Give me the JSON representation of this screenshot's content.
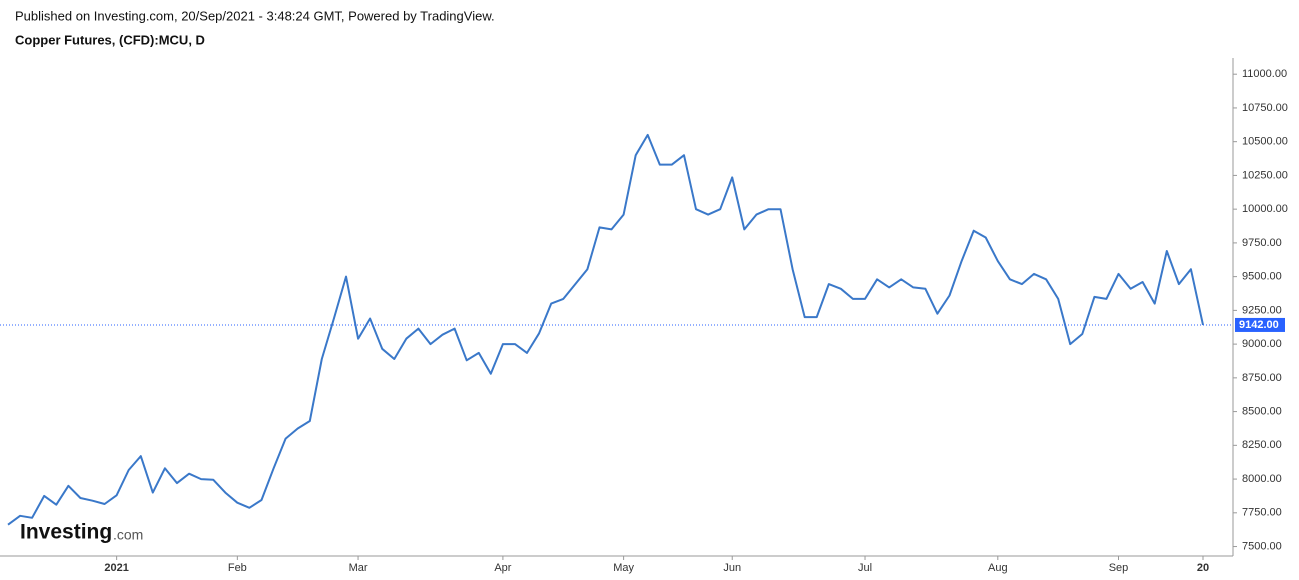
{
  "chart_data": {
    "type": "line",
    "header": "Published on Investing.com, 20/Sep/2021 - 3:48:24 GMT, Powered by TradingView.",
    "title": "Copper Futures, (CFD):MCU, D",
    "logo": "Investing",
    "logo_suffix": ".com",
    "color": "#3a78c9",
    "categories": [
      null,
      null,
      null,
      null,
      null,
      null,
      null,
      null,
      null,
      "2021",
      null,
      null,
      null,
      null,
      null,
      null,
      null,
      null,
      null,
      "Feb",
      null,
      null,
      null,
      null,
      null,
      null,
      null,
      null,
      null,
      "Mar",
      null,
      null,
      null,
      null,
      null,
      null,
      null,
      null,
      null,
      null,
      null,
      "Apr",
      null,
      null,
      null,
      null,
      null,
      null,
      null,
      null,
      null,
      "May",
      null,
      null,
      null,
      null,
      null,
      null,
      null,
      null,
      "Jun",
      null,
      null,
      null,
      null,
      null,
      null,
      null,
      null,
      null,
      null,
      "Jul",
      null,
      null,
      null,
      null,
      null,
      null,
      null,
      null,
      null,
      null,
      "Aug",
      null,
      null,
      null,
      null,
      null,
      null,
      null,
      null,
      null,
      "Sep",
      null,
      null,
      null,
      null,
      null,
      null,
      "20"
    ],
    "values": [
      7662,
      7728,
      7713,
      7875,
      7810,
      7950,
      7860,
      7840,
      7815,
      7880,
      8067,
      8170,
      7900,
      8080,
      7970,
      8040,
      8000,
      7995,
      7900,
      7825,
      7787,
      7845,
      8080,
      8300,
      8375,
      8430,
      8890,
      9190,
      9500,
      9040,
      9190,
      8965,
      8890,
      9040,
      9115,
      9000,
      9070,
      9115,
      8880,
      8935,
      8780,
      9000,
      9000,
      8935,
      9080,
      9300,
      9335,
      9445,
      9555,
      9865,
      9850,
      9960,
      10400,
      10550,
      10330,
      10330,
      10400,
      10000,
      9960,
      10000,
      10235,
      9850,
      9960,
      10000,
      10000,
      9555,
      9200,
      9200,
      9445,
      9410,
      9335,
      9335,
      9480,
      9420,
      9480,
      9420,
      9410,
      9225,
      9360,
      9615,
      9840,
      9790,
      9615,
      9480,
      9445,
      9520,
      9480,
      9335,
      9000,
      9075,
      9350,
      9335,
      9520,
      9410,
      9460,
      9300,
      9690,
      9445,
      9555,
      9142
    ],
    "ylim": [
      7430,
      11120
    ],
    "yticks": [
      {
        "value": 7500,
        "label": "7500.00"
      },
      {
        "value": 7750,
        "label": "7750.00"
      },
      {
        "value": 8000,
        "label": "8000.00"
      },
      {
        "value": 8250,
        "label": "8250.00"
      },
      {
        "value": 8500,
        "label": "8500.00"
      },
      {
        "value": 8750,
        "label": "8750.00"
      },
      {
        "value": 9000,
        "label": "9000.00"
      },
      {
        "value": 9250,
        "label": "9250.00"
      },
      {
        "value": 9500,
        "label": "9500.00"
      },
      {
        "value": 9750,
        "label": "9750.00"
      },
      {
        "value": 10000,
        "label": "10000.00"
      },
      {
        "value": 10250,
        "label": "10250.00"
      },
      {
        "value": 10500,
        "label": "10500.00"
      },
      {
        "value": 10750,
        "label": "10750.00"
      },
      {
        "value": 11000,
        "label": "11000.00"
      }
    ],
    "price_line": {
      "value": 9142,
      "label": "9142.00",
      "color": "#2962ff"
    }
  }
}
